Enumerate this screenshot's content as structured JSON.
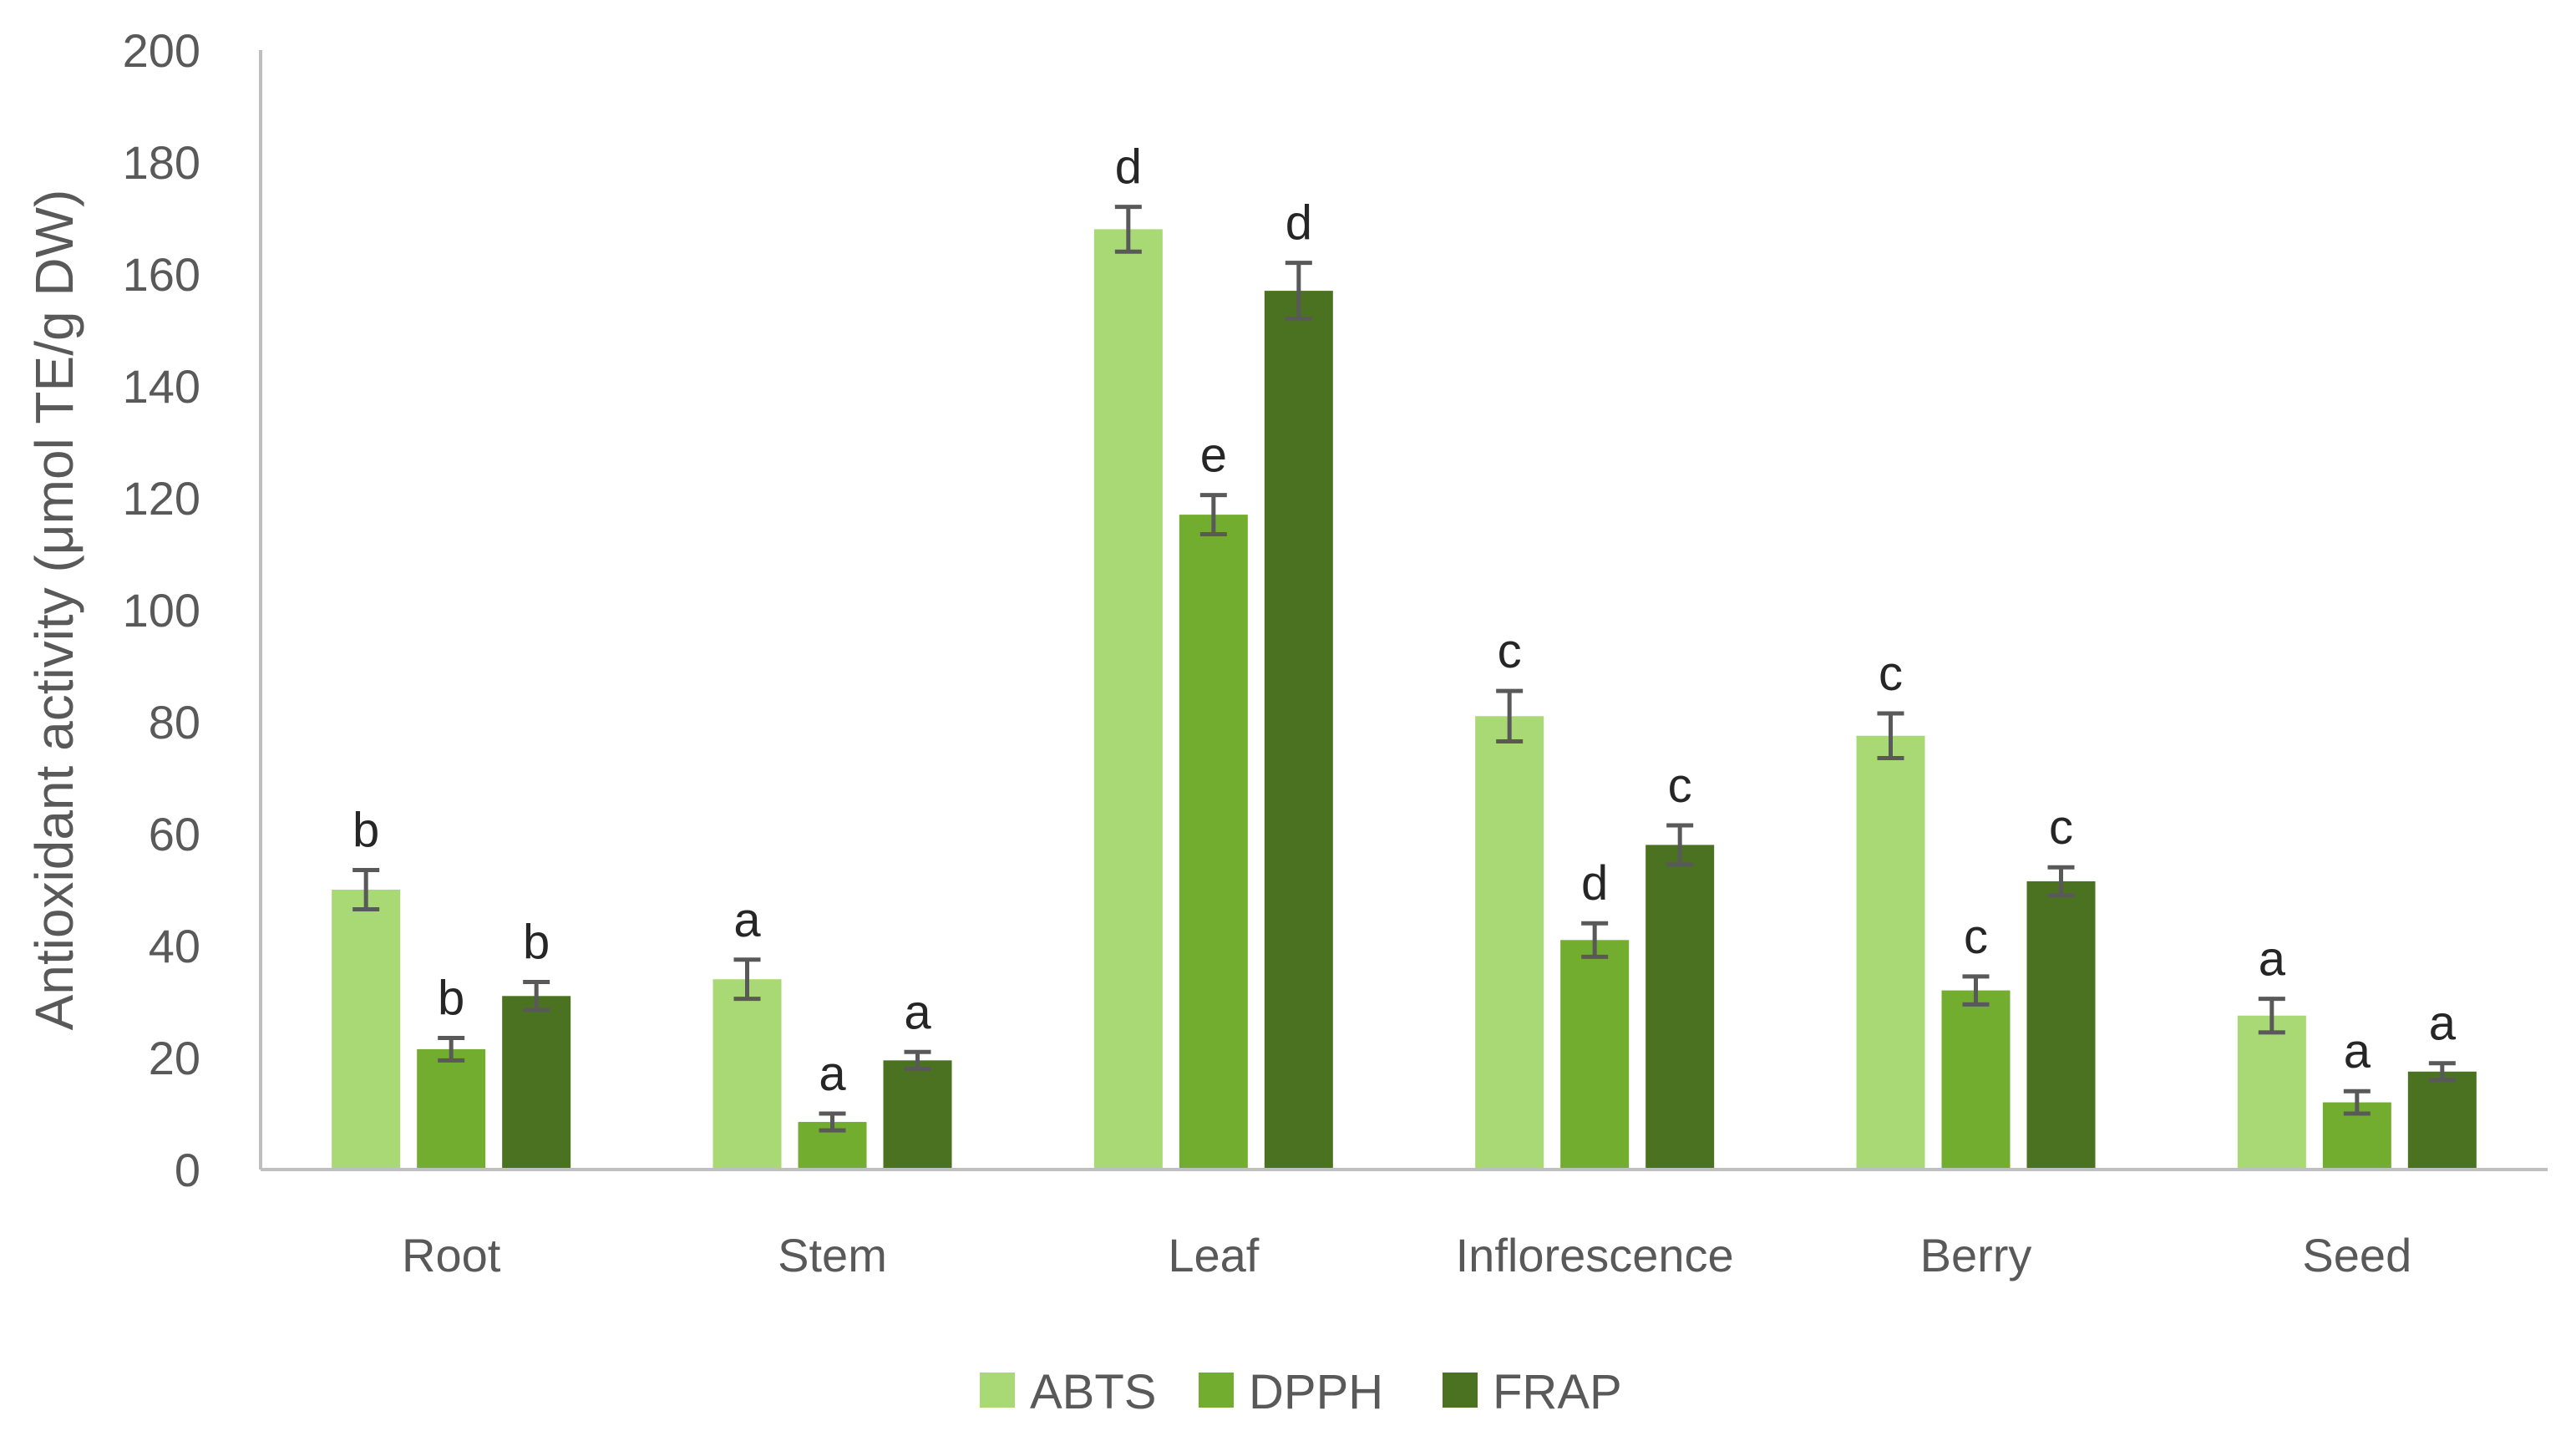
{
  "chart_data": {
    "type": "bar",
    "title": "",
    "xlabel": "",
    "ylabel": "Antioxidant activity (μmol TE/g DW)",
    "ylim": [
      0,
      200
    ],
    "yticks": [
      0,
      20,
      40,
      60,
      80,
      100,
      120,
      140,
      160,
      180,
      200
    ],
    "grid": false,
    "legend_position": "bottom",
    "categories": [
      "Root",
      "Stem",
      "Leaf",
      "Inflorescence",
      "Berry",
      "Seed"
    ],
    "series": [
      {
        "name": "ABTS",
        "color": "#a9d974",
        "values": [
          50,
          34,
          168,
          81,
          77.5,
          27.5
        ],
        "errors": [
          3.5,
          3.5,
          4,
          4.5,
          4,
          3
        ],
        "letters": [
          "b",
          "a",
          "d",
          "c",
          "c",
          "a"
        ]
      },
      {
        "name": "DPPH",
        "color": "#72ad2f",
        "values": [
          21.5,
          8.5,
          117,
          41,
          32,
          12
        ],
        "errors": [
          2,
          1.5,
          3.5,
          3,
          2.5,
          2
        ],
        "letters": [
          "b",
          "a",
          "e",
          "d",
          "c",
          "a"
        ]
      },
      {
        "name": "FRAP",
        "color": "#4a7220",
        "values": [
          31,
          19.5,
          157,
          58,
          51.5,
          17.5
        ],
        "errors": [
          2.5,
          1.5,
          5,
          3.5,
          2.5,
          1.5
        ],
        "letters": [
          "b",
          "a",
          "d",
          "c",
          "c",
          "a"
        ]
      }
    ]
  }
}
